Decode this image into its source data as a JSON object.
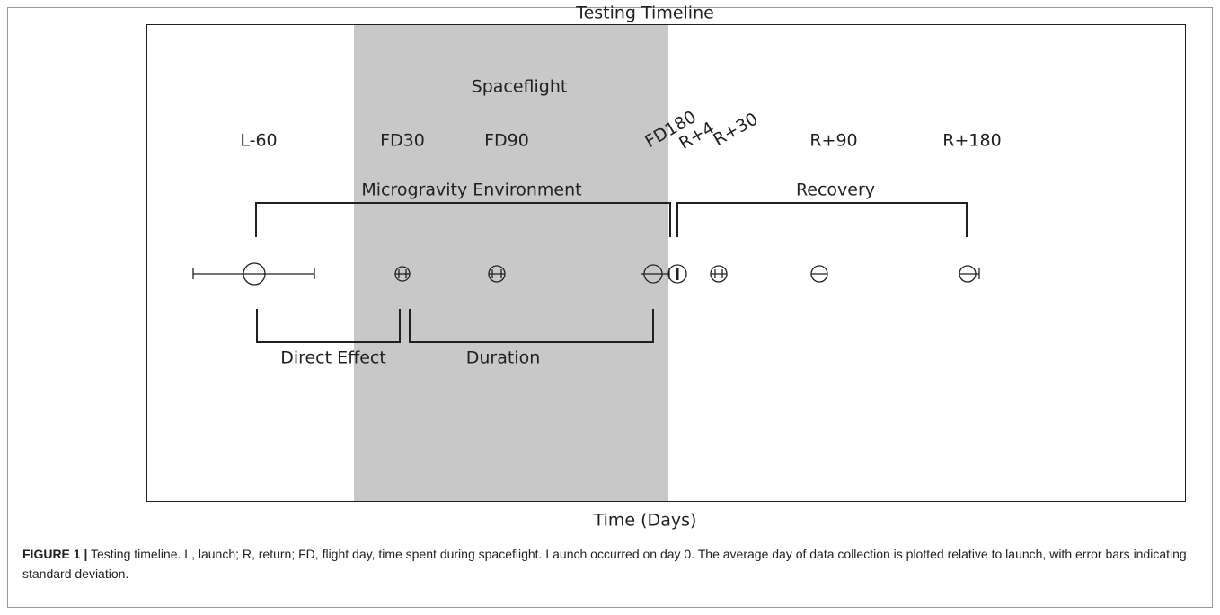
{
  "figure": {
    "title": "Testing Timeline",
    "phase_label": "Spaceflight",
    "timepoints": [
      "L-60",
      "FD30",
      "FD90",
      "FD180",
      "R+4",
      "R+30",
      "R+90",
      "R+180"
    ],
    "brackets": [
      "Microgravity Environment",
      "Recovery",
      "Direct Effect",
      "Duration"
    ],
    "x_axis_label": "Time (Days)",
    "caption_label": "FIGURE 1 |",
    "caption_text": "Testing timeline. L, launch; R, return; FD, flight day, time spent during spaceflight. Launch occurred on day 0. The average day of data collection is plotted relative to launch, with error bars indicating standard deviation."
  }
}
